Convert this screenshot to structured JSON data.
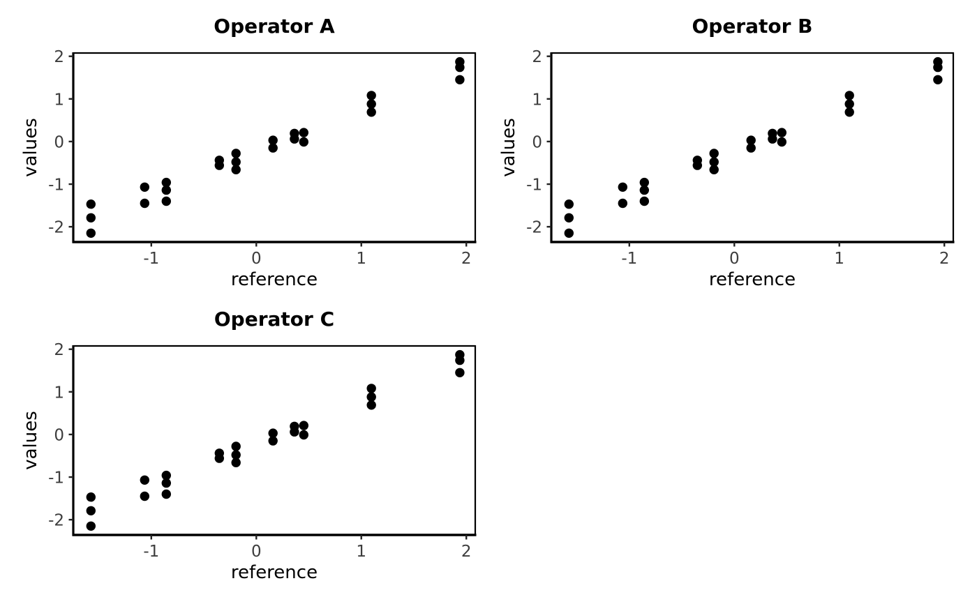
{
  "figure": {
    "background": "#ffffff",
    "dot_color": "#000000",
    "spine_color": "#000000",
    "tick_mark_color": "#222222",
    "tick_label_color": "#3d3d3d",
    "title_color": "#000000",
    "axis_label_color": "#000000"
  },
  "chart_data": [
    {
      "type": "scatter",
      "title": "Operator A",
      "xlabel": "reference",
      "ylabel": "values",
      "x_ticks": [
        -1,
        0,
        1,
        2
      ],
      "y_ticks": [
        2,
        1,
        0,
        -1,
        -2
      ],
      "xlim": [
        -1.743,
        2.085
      ],
      "ylim": [
        -2.358,
        2.077
      ],
      "grid": false,
      "legend": "none",
      "points": [
        [
          -1.575,
          -1.47
        ],
        [
          -1.575,
          -1.79
        ],
        [
          -1.575,
          -2.15
        ],
        [
          -1.063,
          -1.07
        ],
        [
          -1.063,
          -1.45
        ],
        [
          -0.857,
          -0.96
        ],
        [
          -0.857,
          -1.14
        ],
        [
          -0.857,
          -1.4
        ],
        [
          -0.352,
          -0.44
        ],
        [
          -0.352,
          -0.56
        ],
        [
          -0.193,
          -0.28
        ],
        [
          -0.193,
          -0.48
        ],
        [
          -0.193,
          -0.66
        ],
        [
          0.159,
          0.03
        ],
        [
          0.159,
          -0.15
        ],
        [
          0.363,
          0.19
        ],
        [
          0.363,
          0.06
        ],
        [
          0.452,
          0.21
        ],
        [
          0.452,
          -0.01
        ],
        [
          1.096,
          1.08
        ],
        [
          1.096,
          0.88
        ],
        [
          1.096,
          0.69
        ],
        [
          1.938,
          1.87
        ],
        [
          1.938,
          1.74
        ],
        [
          1.938,
          1.45
        ]
      ]
    },
    {
      "type": "scatter",
      "title": "Operator B",
      "xlabel": "reference",
      "ylabel": "values",
      "x_ticks": [
        -1,
        0,
        1,
        2
      ],
      "y_ticks": [
        2,
        1,
        0,
        -1,
        -2
      ],
      "xlim": [
        -1.743,
        2.085
      ],
      "ylim": [
        -2.358,
        2.077
      ],
      "grid": false,
      "legend": "none",
      "points": [
        [
          -1.575,
          -1.47
        ],
        [
          -1.575,
          -1.79
        ],
        [
          -1.575,
          -2.15
        ],
        [
          -1.063,
          -1.07
        ],
        [
          -1.063,
          -1.45
        ],
        [
          -0.857,
          -0.96
        ],
        [
          -0.857,
          -1.14
        ],
        [
          -0.857,
          -1.4
        ],
        [
          -0.352,
          -0.44
        ],
        [
          -0.352,
          -0.56
        ],
        [
          -0.193,
          -0.28
        ],
        [
          -0.193,
          -0.48
        ],
        [
          -0.193,
          -0.66
        ],
        [
          0.159,
          0.03
        ],
        [
          0.159,
          -0.15
        ],
        [
          0.363,
          0.19
        ],
        [
          0.363,
          0.06
        ],
        [
          0.452,
          0.21
        ],
        [
          0.452,
          -0.01
        ],
        [
          1.096,
          1.08
        ],
        [
          1.096,
          0.88
        ],
        [
          1.096,
          0.69
        ],
        [
          1.938,
          1.87
        ],
        [
          1.938,
          1.74
        ],
        [
          1.938,
          1.45
        ]
      ]
    },
    {
      "type": "scatter",
      "title": "Operator C",
      "xlabel": "reference",
      "ylabel": "values",
      "x_ticks": [
        -1,
        0,
        1,
        2
      ],
      "y_ticks": [
        2,
        1,
        0,
        -1,
        -2
      ],
      "xlim": [
        -1.743,
        2.085
      ],
      "ylim": [
        -2.358,
        2.077
      ],
      "grid": false,
      "legend": "none",
      "points": [
        [
          -1.575,
          -1.47
        ],
        [
          -1.575,
          -1.79
        ],
        [
          -1.575,
          -2.15
        ],
        [
          -1.063,
          -1.07
        ],
        [
          -1.063,
          -1.45
        ],
        [
          -0.857,
          -0.96
        ],
        [
          -0.857,
          -1.14
        ],
        [
          -0.857,
          -1.4
        ],
        [
          -0.352,
          -0.44
        ],
        [
          -0.352,
          -0.56
        ],
        [
          -0.193,
          -0.28
        ],
        [
          -0.193,
          -0.48
        ],
        [
          -0.193,
          -0.66
        ],
        [
          0.159,
          0.03
        ],
        [
          0.159,
          -0.15
        ],
        [
          0.363,
          0.19
        ],
        [
          0.363,
          0.06
        ],
        [
          0.452,
          0.21
        ],
        [
          0.452,
          -0.01
        ],
        [
          1.096,
          1.08
        ],
        [
          1.096,
          0.88
        ],
        [
          1.096,
          0.69
        ],
        [
          1.938,
          1.87
        ],
        [
          1.938,
          1.74
        ],
        [
          1.938,
          1.45
        ]
      ]
    }
  ]
}
